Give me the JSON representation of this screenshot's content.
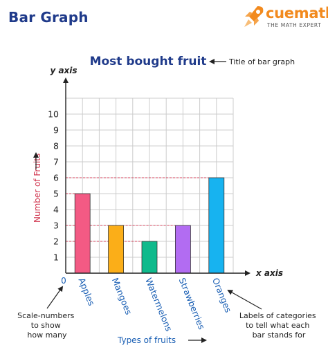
{
  "page": {
    "heading": "Bar Graph",
    "logo_name": "cuemath",
    "logo_tagline": "THE MATH EXPERT",
    "logo_icon": "rocket-icon"
  },
  "chart_data": {
    "type": "bar",
    "title": "Most bought fruit",
    "categories": [
      "Apples",
      "Mangoes",
      "Watermelons",
      "Strawberries",
      "Oranges"
    ],
    "values": [
      5,
      3,
      2,
      3,
      6
    ],
    "bar_colors": [
      "#f35a84",
      "#fbae18",
      "#0fba8c",
      "#b26cf2",
      "#17b3f0"
    ],
    "ylim": [
      0,
      10
    ],
    "yticks": [
      1,
      2,
      3,
      4,
      5,
      6,
      7,
      8,
      9,
      10
    ],
    "origin_label": "0",
    "xlabel": "Types of fruits",
    "ylabel": "Number of Fruits",
    "x_axis_name": "x axis",
    "y_axis_name": "y axis",
    "grid": true,
    "legend": "none",
    "guide_levels": [
      2,
      3,
      5,
      6
    ],
    "annotations": {
      "title_note": "Title of bar graph",
      "scale_note": [
        "Scale-numbers",
        "to show",
        "how many"
      ],
      "labels_note": [
        "Labels of categories",
        "to tell what each",
        "bar stands for"
      ]
    }
  },
  "colors": {
    "heading": "#1f3a8a",
    "category_text": "#1a5fb4",
    "ylabel_text": "#d1364f",
    "guide_line": "#d9435e",
    "grid": "#cccccc",
    "logo_orange": "#f28a1e"
  }
}
